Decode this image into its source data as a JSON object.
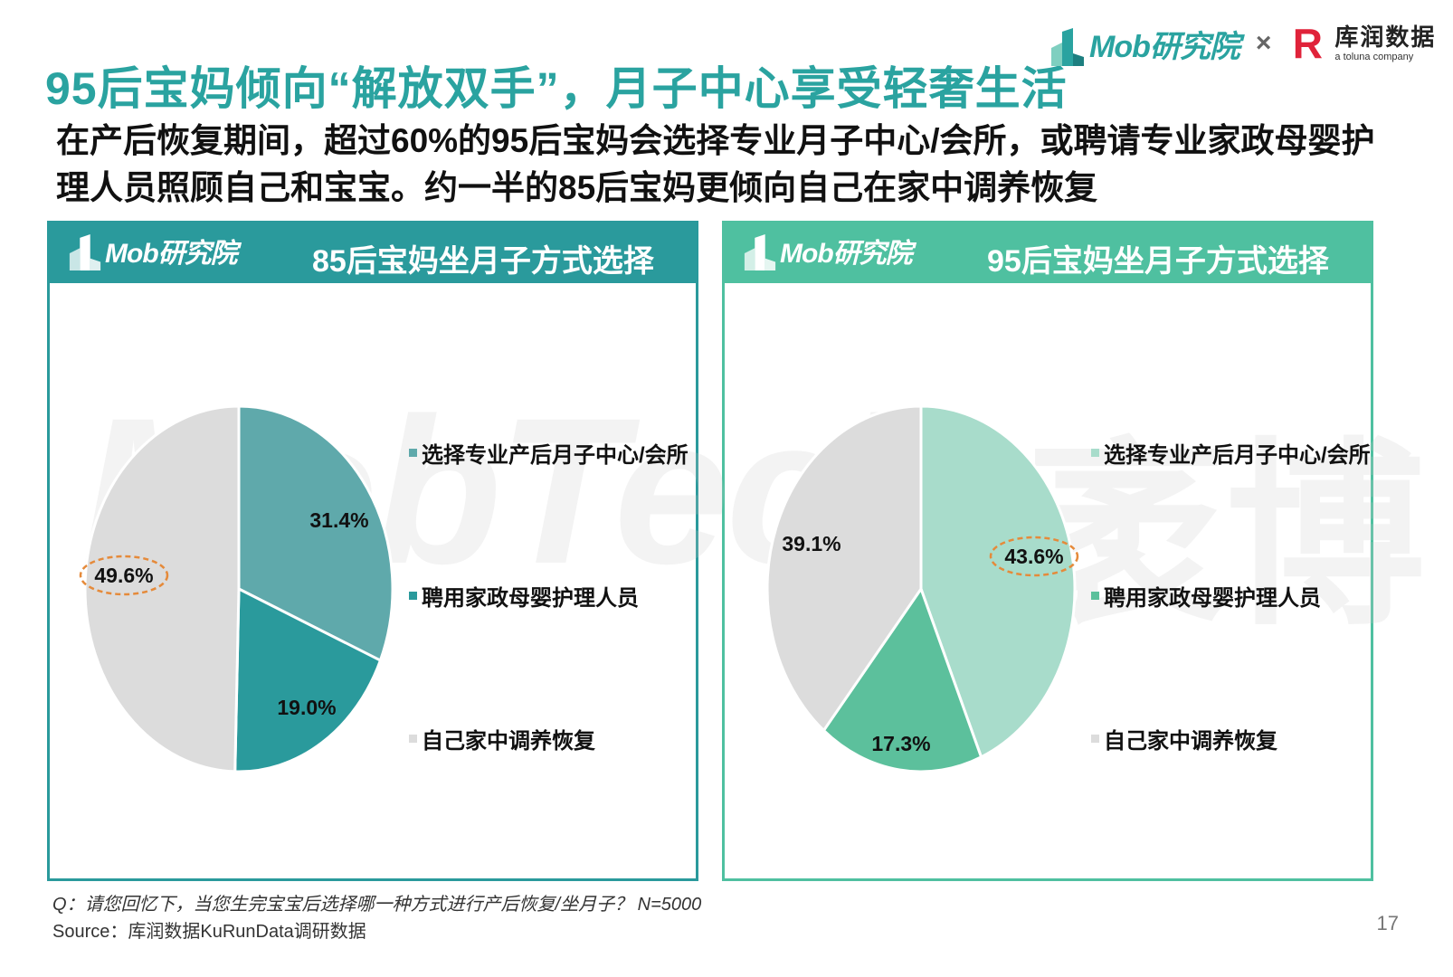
{
  "page": {
    "title": "95后宝妈倾向“解放双手”，月子中心享受轻奢生活",
    "subtitle": "在产后恢复期间，超过60%的95后宝妈会选择专业月子中心/会所，或聘请专业家政母婴护理人员照顾自己和宝宝。约一半的85后宝妈更倾向自己在家中调养恢复",
    "brand": {
      "mob": "Mob研究院",
      "times": "×",
      "kurun_mark": "R",
      "kurun_cn": "库润数据",
      "kurun_en": "a toluna company"
    },
    "panel_brand": "Mob研究院",
    "watermark": "MobTech",
    "watermark_cn": "袤博",
    "footnote_q": "Q：请您回忆下，当您生完宝宝后选择哪一种方式进行产后恢复/坐月子？ N=5000",
    "footnote_source": "Source：库润数据KuRunData调研数据",
    "page_number": "17"
  },
  "chart_data": [
    {
      "type": "pie",
      "title": "85后宝妈坐月子方式选择",
      "categories": [
        "选择专业产后月子中心/会所",
        "聘用家政母婴护理人员",
        "自己家中调养恢复"
      ],
      "values": [
        31.4,
        19.0,
        49.6
      ],
      "labels": [
        "31.4%",
        "19.0%",
        "49.6%"
      ],
      "colors": [
        "#5fa9ab",
        "#2a9a9c",
        "#dcdcdc"
      ],
      "highlight": "49.6%",
      "legend": "right"
    },
    {
      "type": "pie",
      "title": "95后宝妈坐月子方式选择",
      "categories": [
        "选择专业产后月子中心/会所",
        "聘用家政母婴护理人员",
        "自己家中调养恢复"
      ],
      "values": [
        43.6,
        17.3,
        39.1
      ],
      "labels": [
        "43.6%",
        "17.3%",
        "39.1%"
      ],
      "colors": [
        "#a8dccb",
        "#5cc09c",
        "#dcdcdc"
      ],
      "highlight": "43.6%",
      "legend": "right"
    }
  ]
}
